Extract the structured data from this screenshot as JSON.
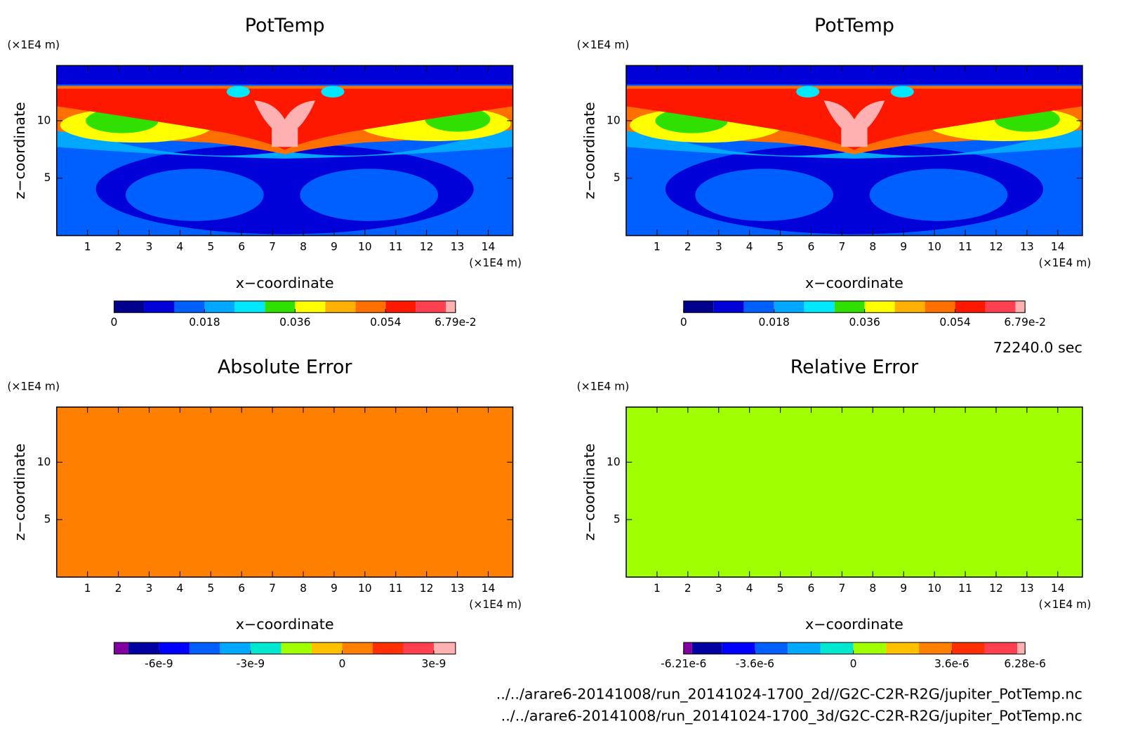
{
  "chart_data": [
    {
      "type": "contour",
      "title": "PotTemp",
      "x_label": "x−coordinate",
      "y_label": "z−coordinate",
      "x_unit": "(×1E4 m)",
      "y_unit": "(×1E4 m)",
      "xlim": [
        0,
        14.8
      ],
      "ylim": [
        0,
        14.8
      ],
      "xticks": [
        1,
        2,
        3,
        4,
        5,
        6,
        7,
        8,
        9,
        10,
        11,
        12,
        13,
        14
      ],
      "yticks": [
        5,
        10
      ],
      "colorbar": {
        "lim": [
          0,
          0.0679
        ],
        "levels": [
          0,
          0.006,
          0.012,
          0.018,
          0.024,
          0.03,
          0.036,
          0.042,
          0.048,
          0.054,
          0.06,
          0.066,
          0.0679
        ],
        "colors": [
          "#00008c",
          "#0000d8",
          "#0060ff",
          "#00a8ff",
          "#00e8ff",
          "#30e000",
          "#ffff00",
          "#ffb000",
          "#ff7000",
          "#ff1800",
          "#ff4050",
          "#ffb0b0"
        ],
        "ticks": [
          0,
          0.018,
          0.036,
          0.054,
          {
            "value": 0.0679,
            "label": "6.79e-2"
          }
        ]
      }
    },
    {
      "type": "contour",
      "title": "PotTemp",
      "x_label": "x−coordinate",
      "y_label": "z−coordinate",
      "x_unit": "(×1E4 m)",
      "y_unit": "(×1E4 m)",
      "xlim": [
        0,
        14.8
      ],
      "ylim": [
        0,
        14.8
      ],
      "xticks": [
        1,
        2,
        3,
        4,
        5,
        6,
        7,
        8,
        9,
        10,
        11,
        12,
        13,
        14
      ],
      "yticks": [
        5,
        10
      ],
      "colorbar": {
        "lim": [
          0,
          0.0679
        ],
        "levels": [
          0,
          0.006,
          0.012,
          0.018,
          0.024,
          0.03,
          0.036,
          0.042,
          0.048,
          0.054,
          0.06,
          0.066,
          0.0679
        ],
        "colors": [
          "#00008c",
          "#0000d8",
          "#0060ff",
          "#00a8ff",
          "#00e8ff",
          "#30e000",
          "#ffff00",
          "#ffb000",
          "#ff7000",
          "#ff1800",
          "#ff4050",
          "#ffb0b0"
        ],
        "ticks": [
          0,
          0.018,
          0.036,
          0.054,
          {
            "value": 0.0679,
            "label": "6.79e-2"
          }
        ]
      }
    },
    {
      "type": "contour",
      "title": "Absolute Error",
      "x_label": "x−coordinate",
      "y_label": "z−coordinate",
      "x_unit": "(×1E4 m)",
      "y_unit": "(×1E4 m)",
      "xlim": [
        0,
        14.8
      ],
      "ylim": [
        0,
        14.8
      ],
      "xticks": [
        1,
        2,
        3,
        4,
        5,
        6,
        7,
        8,
        9,
        10,
        11,
        12,
        13,
        14
      ],
      "yticks": [
        5,
        10
      ],
      "field_color": "#ff8000",
      "colorbar": {
        "lim": [
          -7.47e-09,
          3.71e-09
        ],
        "levels": [
          -7.47e-09,
          -7e-09,
          -6e-09,
          -5e-09,
          -4e-09,
          -3e-09,
          -2e-09,
          -1e-09,
          0,
          1e-09,
          2e-09,
          3e-09,
          3.71e-09
        ],
        "colors": [
          "#8000a0",
          "#0000a0",
          "#0000ff",
          "#0060ff",
          "#00a8ff",
          "#00e8d0",
          "#a0ff00",
          "#ffc000",
          "#ff8000",
          "#ff3000",
          "#ff4050",
          "#ffb0b0"
        ],
        "ticks": [
          {
            "value": -6e-09,
            "label": "-6e-9"
          },
          {
            "value": -3e-09,
            "label": "-3e-9"
          },
          0,
          {
            "value": 3e-09,
            "label": "3e-9"
          }
        ]
      }
    },
    {
      "type": "contour",
      "title": "Relative Error",
      "x_label": "x−coordinate",
      "y_label": "z−coordinate",
      "x_unit": "(×1E4 m)",
      "y_unit": "(×1E4 m)",
      "xlim": [
        0,
        14.8
      ],
      "ylim": [
        0,
        14.8
      ],
      "xticks": [
        1,
        2,
        3,
        4,
        5,
        6,
        7,
        8,
        9,
        10,
        11,
        12,
        13,
        14
      ],
      "yticks": [
        5,
        10
      ],
      "field_color": "#a0ff00",
      "colorbar": {
        "lim": [
          -6.21e-06,
          6.28e-06
        ],
        "levels": [
          -6.21e-06,
          -5.9e-06,
          -4.8e-06,
          -3.6e-06,
          -2.4e-06,
          -1.2e-06,
          0,
          1.2e-06,
          2.4e-06,
          3.6e-06,
          4.8e-06,
          6e-06,
          6.28e-06
        ],
        "colors": [
          "#8000a0",
          "#0000a0",
          "#0000ff",
          "#0060ff",
          "#00a8ff",
          "#00e8d0",
          "#a0ff00",
          "#ffc000",
          "#ff8000",
          "#ff3000",
          "#ff4050",
          "#ffb0b0"
        ],
        "ticks": [
          {
            "value": -6.21e-06,
            "label": "-6.21e-6"
          },
          {
            "value": -3.6e-06,
            "label": "-3.6e-6"
          },
          0,
          {
            "value": 3.6e-06,
            "label": "3.6e-6"
          },
          {
            "value": 6.28e-06,
            "label": "6.28e-6"
          }
        ]
      }
    }
  ],
  "time_label": "72240.0 sec",
  "files": [
    "../../arare6-20141008/run_20141024-1700_2d//G2C-C2R-R2G/jupiter_PotTemp.nc",
    "../../arare6-20141008/run_20141024-1700_3d/G2C-C2R-R2G/jupiter_PotTemp.nc"
  ]
}
